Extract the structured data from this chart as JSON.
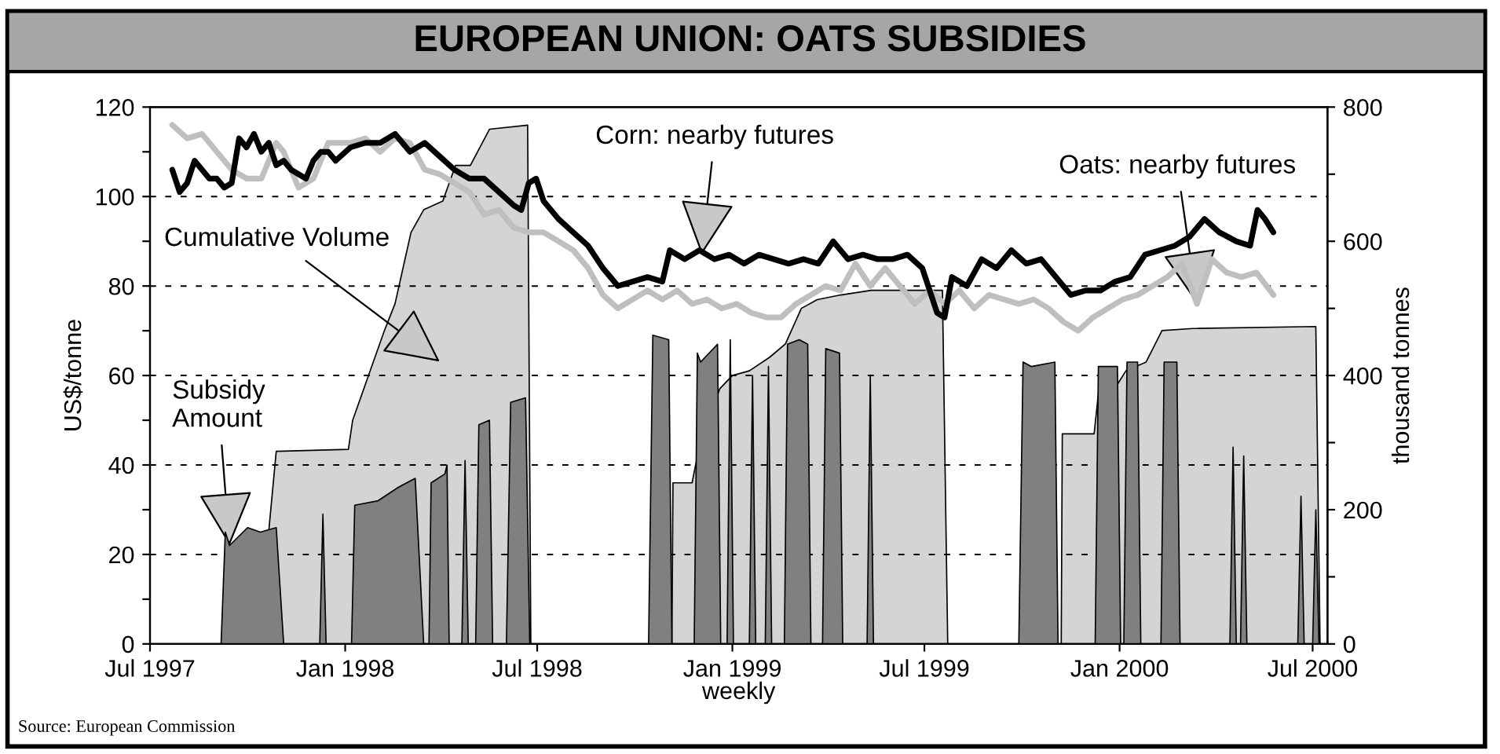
{
  "chart_data": {
    "type": "line",
    "title": "EUROPEAN UNION: OATS SUBSIDIES",
    "xlabel": "weekly",
    "ylabel": "US$/tonne",
    "y2label": "thousand tonnes",
    "xlim": [
      "1997-07-01",
      "2000-07-15"
    ],
    "xticks": [
      {
        "value": "1997-07-01",
        "label": "Jul 1997"
      },
      {
        "value": "1998-01-01",
        "label": "Jan 1998"
      },
      {
        "value": "1998-07-01",
        "label": "Jul 1998"
      },
      {
        "value": "1999-01-01",
        "label": "Jan 1999"
      },
      {
        "value": "1999-07-01",
        "label": "Jul 1999"
      },
      {
        "value": "2000-01-01",
        "label": "Jan 2000"
      },
      {
        "value": "2000-07-01",
        "label": "Jul 2000"
      }
    ],
    "ylim": [
      0,
      120
    ],
    "yticks": [
      0,
      {
        "value": 10,
        "label": null
      },
      20,
      {
        "value": 30,
        "label": null
      },
      40,
      {
        "value": 50,
        "label": null
      },
      60,
      {
        "value": 70,
        "label": null
      },
      80,
      {
        "value": 90,
        "label": null
      },
      100,
      {
        "value": 110,
        "label": null
      },
      120
    ],
    "y2lim": [
      0,
      800
    ],
    "y2ticks": [
      0,
      {
        "value": 100,
        "label": null
      },
      200,
      {
        "value": 300,
        "label": null
      },
      400,
      {
        "value": 500,
        "label": null
      },
      600,
      {
        "value": 700,
        "label": null
      },
      800
    ],
    "grid": "y",
    "series": [
      {
        "type": "area",
        "axis": "y2",
        "color": "#d4d4d4",
        "x": [
          "1997-10-11",
          "1997-10-28",
          "1998-01-04",
          "1998-01-08",
          "1998-01-23",
          "1998-02-07",
          "1998-02-17",
          "1998-03-04",
          "1998-03-16",
          "1998-04-03",
          "1998-04-15",
          "1998-04-29",
          "1998-05-17",
          "1998-06-22",
          "1998-06-25",
          "1998-11-05",
          "1998-11-06",
          "1998-11-24",
          "1998-11-29",
          "1998-12-20",
          "1999-01-01",
          "1999-01-17",
          "1999-02-05",
          "1999-02-20",
          "1999-03-07",
          "1999-03-22",
          "1999-04-13",
          "1999-05-12",
          "1999-07-18",
          "1999-07-23",
          "1999-11-07",
          "1999-11-08",
          "1999-12-08",
          "1999-12-12",
          "1999-12-30",
          "2000-01-07",
          "2000-01-26",
          "2000-02-10",
          "2000-03-10",
          "2000-07-04",
          "2000-07-08"
        ],
        "values": [
          0,
          287,
          290,
          333,
          400,
          467,
          507,
          613,
          647,
          660,
          713,
          713,
          767,
          773,
          0,
          0,
          240,
          240,
          280,
          380,
          400,
          407,
          427,
          447,
          500,
          513,
          520,
          527,
          527,
          0,
          0,
          313,
          313,
          373,
          387,
          407,
          420,
          467,
          470,
          473,
          0
        ]
      },
      {
        "type": "area",
        "color": "#808080",
        "x": [
          "1997-09-06",
          "1997-09-10",
          "1997-09-14",
          "1997-10-01",
          "1997-10-13",
          "1997-10-28",
          "1997-11-04",
          "1997-12-08",
          "1997-12-11",
          "1997-12-14",
          "1998-01-07",
          "1998-01-10",
          "1998-02-01",
          "1998-02-20",
          "1998-03-08",
          "1998-03-16",
          "1998-03-21",
          "1998-03-23",
          "1998-04-05",
          "1998-04-07",
          "1998-04-09",
          "1998-04-21",
          "1998-04-24",
          "1998-04-27",
          "1998-05-04",
          "1998-05-07",
          "1998-05-17",
          "1998-05-20",
          "1998-06-02",
          "1998-06-06",
          "1998-06-20",
          "1998-06-24",
          "1998-10-14",
          "1998-10-18",
          "1998-11-02",
          "1998-11-05",
          "1998-11-26",
          "1998-11-29",
          "1998-12-02",
          "1998-12-18",
          "1998-12-21",
          "1998-12-27",
          "1998-12-30",
          "1999-01-02",
          "1999-01-17",
          "1999-01-20",
          "1999-01-23",
          "1999-02-01",
          "1999-02-04",
          "1999-02-07",
          "1999-02-19",
          "1999-02-22",
          "1999-03-05",
          "1999-03-13",
          "1999-03-16",
          "1999-03-27",
          "1999-03-30",
          "1999-04-12",
          "1999-04-15",
          "1999-05-08",
          "1999-05-11",
          "1999-05-14",
          "1999-09-28",
          "1999-10-02",
          "1999-10-10",
          "1999-11-01",
          "1999-11-04",
          "1999-12-09",
          "1999-12-12",
          "1999-12-30",
          "2000-01-02",
          "2000-01-05",
          "2000-01-08",
          "2000-01-18",
          "2000-01-21",
          "2000-02-09",
          "2000-02-12",
          "2000-02-24",
          "2000-02-27",
          "2000-04-14",
          "2000-04-17",
          "2000-04-20",
          "2000-04-24",
          "2000-04-27",
          "2000-04-30",
          "2000-06-17",
          "2000-06-20",
          "2000-06-23",
          "2000-07-01",
          "2000-07-04",
          "2000-07-07"
        ],
        "values": [
          0,
          25,
          22,
          26,
          25,
          26,
          0,
          0,
          29,
          0,
          0,
          31,
          32,
          35,
          37,
          0,
          0,
          36,
          38,
          40,
          0,
          0,
          41,
          0,
          0,
          49,
          50,
          0,
          0,
          54,
          55,
          0,
          0,
          69,
          68,
          0,
          0,
          65,
          63,
          67,
          0,
          0,
          68,
          0,
          0,
          60,
          0,
          0,
          62,
          0,
          0,
          67,
          68,
          67,
          0,
          0,
          66,
          65,
          0,
          0,
          60,
          0,
          0,
          63,
          62,
          63,
          0,
          0,
          62,
          62,
          0,
          0,
          63,
          63,
          0,
          0,
          63,
          63,
          0,
          0,
          44,
          0,
          0,
          42,
          0,
          0,
          33,
          0,
          0,
          30,
          0
        ]
      },
      {
        "color": "#bfbfbf",
        "x": [
          "1997-07-22",
          "1997-08-05",
          "1997-08-19",
          "1997-09-02",
          "1997-09-16",
          "1997-09-30",
          "1997-10-14",
          "1997-10-28",
          "1997-11-04",
          "1997-11-18",
          "1997-12-02",
          "1997-12-16",
          "1998-01-06",
          "1998-01-20",
          "1998-02-03",
          "1998-02-17",
          "1998-03-03",
          "1998-03-17",
          "1998-03-31",
          "1998-04-14",
          "1998-04-28",
          "1998-05-12",
          "1998-05-26",
          "1998-06-09",
          "1998-06-23",
          "1998-07-07",
          "1998-07-21",
          "1998-08-04",
          "1998-08-18",
          "1998-09-01",
          "1998-09-15",
          "1998-09-29",
          "1998-10-13",
          "1998-10-27",
          "1998-11-10",
          "1998-11-24",
          "1998-12-08",
          "1998-12-22",
          "1999-01-05",
          "1999-01-19",
          "1999-02-02",
          "1999-02-16",
          "1999-03-02",
          "1999-03-16",
          "1999-03-30",
          "1999-04-13",
          "1999-04-27",
          "1999-05-11",
          "1999-05-25",
          "1999-06-08",
          "1999-06-22",
          "1999-07-06",
          "1999-07-20",
          "1999-08-03",
          "1999-08-17",
          "1999-08-31",
          "1999-09-14",
          "1999-09-28",
          "1999-10-12",
          "1999-10-26",
          "1999-11-09",
          "1999-11-23",
          "1999-12-07",
          "1999-12-21",
          "2000-01-04",
          "2000-01-18",
          "2000-02-01",
          "2000-02-15",
          "2000-02-29",
          "2000-03-14",
          "2000-03-28",
          "2000-04-11",
          "2000-04-25",
          "2000-05-09",
          "2000-05-25"
        ],
        "values": [
          116,
          113,
          114,
          110,
          106,
          104,
          104,
          112,
          110,
          102,
          104,
          112,
          112,
          113,
          110,
          113,
          112,
          106,
          105,
          103,
          101,
          96,
          97,
          93,
          92,
          92,
          90,
          88,
          84,
          78,
          75,
          77,
          79,
          77,
          79,
          76,
          77,
          75,
          76,
          74,
          73,
          73,
          76,
          78,
          80,
          79,
          85,
          80,
          84,
          80,
          76,
          79,
          76,
          79,
          75,
          78,
          77,
          76,
          77,
          75,
          72,
          70,
          73,
          75,
          77,
          78,
          80,
          82,
          85,
          76,
          86,
          83,
          82,
          83,
          78
        ]
      },
      {
        "color": "#000000",
        "x": [
          "1997-07-22",
          "1997-07-29",
          "1997-08-05",
          "1997-08-12",
          "1997-08-19",
          "1997-08-26",
          "1997-09-02",
          "1997-09-09",
          "1997-09-16",
          "1997-09-23",
          "1997-09-30",
          "1997-10-07",
          "1997-10-14",
          "1997-10-21",
          "1997-10-28",
          "1997-11-04",
          "1997-11-11",
          "1997-11-25",
          "1997-12-02",
          "1997-12-09",
          "1997-12-16",
          "1997-12-23",
          "1998-01-06",
          "1998-01-20",
          "1998-02-03",
          "1998-02-17",
          "1998-03-03",
          "1998-03-17",
          "1998-03-31",
          "1998-04-14",
          "1998-04-28",
          "1998-05-12",
          "1998-05-26",
          "1998-06-09",
          "1998-06-16",
          "1998-06-23",
          "1998-06-30",
          "1998-07-07",
          "1998-07-21",
          "1998-08-04",
          "1998-08-18",
          "1998-09-01",
          "1998-09-15",
          "1998-09-29",
          "1998-10-13",
          "1998-10-27",
          "1998-11-03",
          "1998-11-17",
          "1998-12-01",
          "1998-12-15",
          "1998-12-29",
          "1999-01-12",
          "1999-01-26",
          "1999-02-09",
          "1999-02-23",
          "1999-03-09",
          "1999-03-23",
          "1999-04-06",
          "1999-04-20",
          "1999-05-04",
          "1999-05-18",
          "1999-06-01",
          "1999-06-15",
          "1999-06-29",
          "1999-07-13",
          "1999-07-20",
          "1999-07-27",
          "1999-08-10",
          "1999-08-24",
          "1999-09-07",
          "1999-09-21",
          "1999-10-05",
          "1999-10-19",
          "1999-11-02",
          "1999-11-16",
          "1999-11-30",
          "1999-12-14",
          "1999-12-28",
          "2000-01-11",
          "2000-01-25",
          "2000-02-08",
          "2000-02-22",
          "2000-03-07",
          "2000-03-21",
          "2000-04-04",
          "2000-04-20",
          "2000-05-03",
          "2000-05-10",
          "2000-05-17",
          "2000-05-25"
        ],
        "values": [
          106,
          101,
          103,
          108,
          106,
          104,
          104,
          102,
          103,
          113,
          111,
          114,
          110,
          112,
          107,
          108,
          106,
          104,
          108,
          110,
          110,
          108,
          111,
          112,
          112,
          114,
          110,
          112,
          109,
          106,
          104,
          104,
          101,
          98,
          97,
          103,
          104,
          99,
          95,
          92,
          89,
          84,
          80,
          81,
          82,
          81,
          88,
          86,
          88,
          86,
          87,
          85,
          87,
          86,
          85,
          86,
          85,
          90,
          86,
          87,
          86,
          86,
          87,
          84,
          74,
          73,
          82,
          80,
          86,
          84,
          88,
          85,
          86,
          82,
          78,
          79,
          79,
          81,
          82,
          87,
          88,
          89,
          91,
          95,
          92,
          90,
          89,
          97,
          95,
          92
        ]
      }
    ],
    "annotations": [
      {
        "text": "Subsidy\nAmount",
        "x": "1997-09-14",
        "y": 22
      },
      "Cumulative Volume",
      {
        "text": "Corn: nearby futures",
        "x": "1998-12-03",
        "y": 87
      },
      {
        "text": "Oats: nearby futures",
        "x": "2000-03-14",
        "y": 76
      },
      "Source: European Commission"
    ]
  }
}
